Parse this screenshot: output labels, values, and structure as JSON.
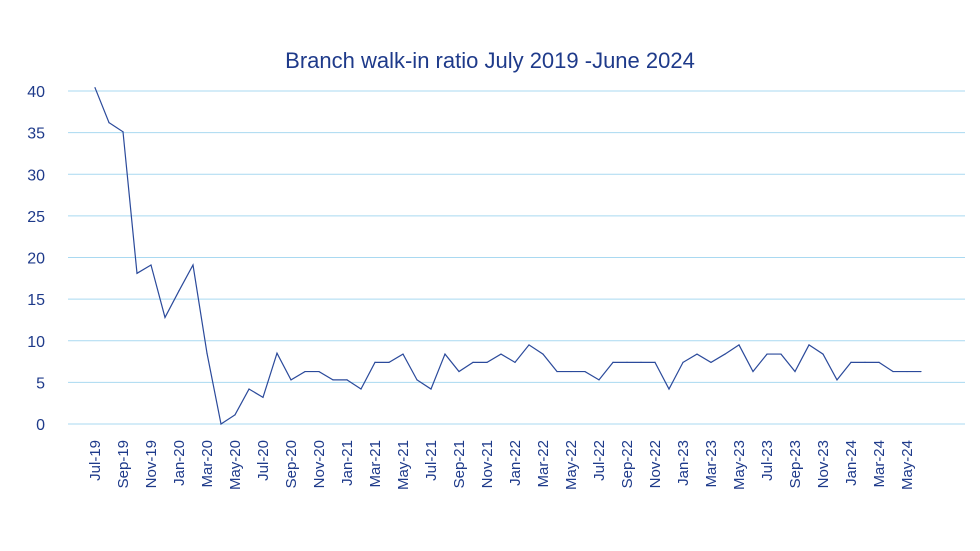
{
  "chart_data": {
    "type": "line",
    "title": "Branch walk-in ratio July 2019 -June 2024",
    "xlabel": "",
    "ylabel": "",
    "ylim": [
      0,
      40
    ],
    "yticks": [
      0,
      5,
      10,
      15,
      20,
      25,
      30,
      35,
      40
    ],
    "grid": true,
    "colors": {
      "line": "#2b4a9b",
      "grid": "#a9d9f1",
      "text": "#1e3a8a"
    },
    "x": [
      "Jul-19",
      "Aug-19",
      "Sep-19",
      "Oct-19",
      "Nov-19",
      "Dec-19",
      "Jan-20",
      "Feb-20",
      "Mar-20",
      "Apr-20",
      "May-20",
      "Jun-20",
      "Jul-20",
      "Aug-20",
      "Sep-20",
      "Oct-20",
      "Nov-20",
      "Dec-20",
      "Jan-21",
      "Feb-21",
      "Mar-21",
      "Apr-21",
      "May-21",
      "Jun-21",
      "Jul-21",
      "Aug-21",
      "Sep-21",
      "Oct-21",
      "Nov-21",
      "Dec-21",
      "Jan-22",
      "Feb-22",
      "Mar-22",
      "Apr-22",
      "May-22",
      "Jun-22",
      "Jul-22",
      "Aug-22",
      "Sep-22",
      "Oct-22",
      "Nov-22",
      "Dec-22",
      "Jan-23",
      "Feb-23",
      "Mar-23",
      "Apr-23",
      "May-23",
      "Jun-23",
      "Jul-23",
      "Aug-23",
      "Sep-23",
      "Oct-23",
      "Nov-23",
      "Dec-23",
      "Jan-24",
      "Feb-24",
      "Mar-24",
      "Apr-24",
      "May-24",
      "Jun-24"
    ],
    "xtick_labels": [
      "Jul-19",
      "Sep-19",
      "Nov-19",
      "Jan-20",
      "Mar-20",
      "May-20",
      "Jul-20",
      "Sep-20",
      "Nov-20",
      "Jan-21",
      "Mar-21",
      "May-21",
      "Jul-21",
      "Sep-21",
      "Nov-21",
      "Jan-22",
      "Mar-22",
      "May-22",
      "Jul-22",
      "Sep-22",
      "Nov-22",
      "Jan-23",
      "Mar-23",
      "May-23",
      "Jul-23",
      "Sep-23",
      "Nov-23",
      "Jan-24",
      "Mar-24",
      "May-24"
    ],
    "series": [
      {
        "name": "Walk-in ratio",
        "values": [
          40.4,
          36.2,
          35.1,
          18.1,
          19.1,
          12.8,
          16.0,
          19.1,
          8.5,
          0,
          1.1,
          4.2,
          3.2,
          8.5,
          5.3,
          6.3,
          6.3,
          5.3,
          5.3,
          4.2,
          7.4,
          7.4,
          8.4,
          5.3,
          4.2,
          8.4,
          6.3,
          7.4,
          7.4,
          8.4,
          7.4,
          9.5,
          8.4,
          6.3,
          6.3,
          6.3,
          5.3,
          7.4,
          7.4,
          7.4,
          7.4,
          4.2,
          7.4,
          8.4,
          7.4,
          8.4,
          9.5,
          6.3,
          8.4,
          8.4,
          6.3,
          9.5,
          8.4,
          5.3,
          7.4,
          7.4,
          7.4,
          6.3,
          6.3,
          6.3
        ]
      }
    ]
  }
}
